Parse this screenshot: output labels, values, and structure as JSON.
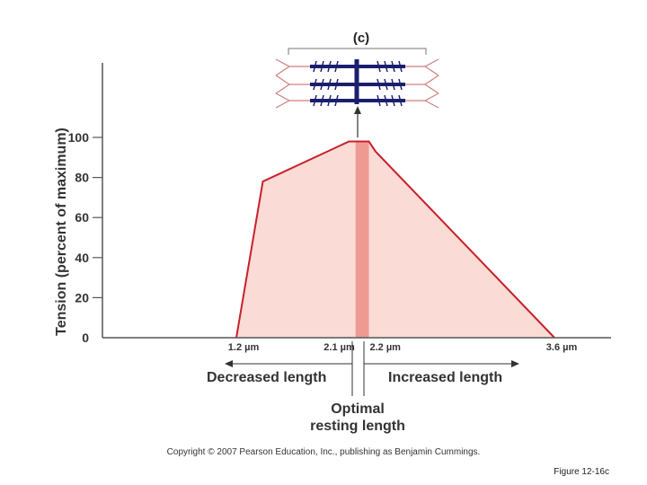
{
  "chart_data": {
    "type": "area",
    "panel_label": "(c)",
    "ylabel": "Tension (percent of maximum)",
    "yticks": [
      0,
      20,
      40,
      60,
      80,
      100
    ],
    "ylim": [
      0,
      115
    ],
    "x_unit": "µm",
    "xticks": [
      {
        "value": 1.2,
        "label": "1.2 µm"
      },
      {
        "value": 2.1,
        "label": "2.1 µm"
      },
      {
        "value": 2.2,
        "label": "2.2 µm"
      },
      {
        "value": 3.6,
        "label": "3.6 µm"
      }
    ],
    "xlim": [
      0.0,
      4.0
    ],
    "series": [
      {
        "x": [
          1.2,
          1.4,
          2.05,
          2.1,
          2.2,
          2.25,
          3.6
        ],
        "y": [
          0,
          78,
          98,
          98,
          98,
          93,
          0
        ]
      }
    ],
    "optimal_band": [
      2.1,
      2.2
    ],
    "annotations": {
      "decreased": "Decreased length",
      "increased": "Increased length",
      "optimal_line1": "Optimal",
      "optimal_line2": "resting length"
    },
    "grid": false,
    "colors": {
      "fill": "#fadbd6",
      "line": "#c8202a",
      "band": "#ee9a93",
      "axis": "#555555",
      "sarcomere": "#1b1e6e"
    }
  },
  "footer": {
    "copyright": "Copyright © 2007 Pearson Education, Inc., publishing as Benjamin Cummings.",
    "figure_label": "Figure 12-16c"
  }
}
